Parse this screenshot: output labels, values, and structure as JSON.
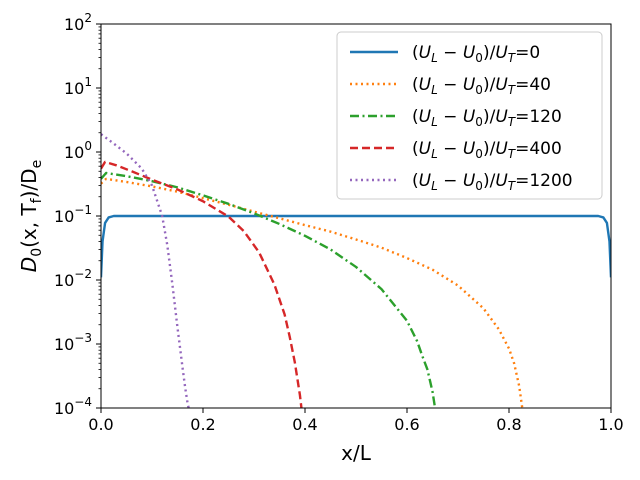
{
  "chart_data": {
    "type": "line",
    "title": "",
    "xlabel": "x/L",
    "ylabel": "D₀(x, T_f)/D_e",
    "ylabel_parts": [
      "D",
      "0",
      "(x, T",
      "f",
      ")/D",
      "e"
    ],
    "xlim": [
      0.0,
      1.0
    ],
    "ylim": [
      0.0001,
      100
    ],
    "yscale": "log",
    "grid": false,
    "legend_position": "top-right",
    "x_ticks": [
      "0.0",
      "0.2",
      "0.4",
      "0.6",
      "0.8",
      "1.0"
    ],
    "y_ticks": [
      {
        "base": "10",
        "exp": "−4"
      },
      {
        "base": "10",
        "exp": "−3"
      },
      {
        "base": "10",
        "exp": "−2"
      },
      {
        "base": "10",
        "exp": "−1"
      },
      {
        "base": "10",
        "exp": "0"
      },
      {
        "base": "10",
        "exp": "1"
      },
      {
        "base": "10",
        "exp": "2"
      }
    ],
    "series": [
      {
        "name": "(U_L − U_0)/U_T=0",
        "legend_value": "0",
        "color": "#1f77b4",
        "style": "solid",
        "x": [
          0.0,
          0.003,
          0.008,
          0.015,
          0.025,
          0.04,
          0.1,
          0.3,
          0.5,
          0.7,
          0.9,
          0.96,
          0.975,
          0.985,
          0.992,
          0.997,
          1.0
        ],
        "y": [
          0.011,
          0.04,
          0.078,
          0.095,
          0.1,
          0.1,
          0.1,
          0.1,
          0.1,
          0.1,
          0.1,
          0.1,
          0.1,
          0.095,
          0.078,
          0.04,
          0.011
        ]
      },
      {
        "name": "(U_L − U_0)/U_T=40",
        "legend_value": "40",
        "color": "#ff7f0e",
        "style": "dotted",
        "x": [
          0.0,
          0.01,
          0.05,
          0.1,
          0.15,
          0.2,
          0.25,
          0.3,
          0.35,
          0.4,
          0.45,
          0.5,
          0.55,
          0.6,
          0.65,
          0.7,
          0.75,
          0.78,
          0.8,
          0.81,
          0.82,
          0.826
        ],
        "y": [
          0.32,
          0.38,
          0.34,
          0.29,
          0.24,
          0.19,
          0.15,
          0.117,
          0.092,
          0.072,
          0.057,
          0.043,
          0.032,
          0.022,
          0.0145,
          0.0082,
          0.0036,
          0.0017,
          0.00085,
          0.0005,
          0.00022,
          0.0001
        ]
      },
      {
        "name": "(U_L − U_0)/U_T=120",
        "legend_value": "120",
        "color": "#2ca02c",
        "style": "dashdot",
        "x": [
          0.0,
          0.01,
          0.05,
          0.1,
          0.15,
          0.2,
          0.25,
          0.3,
          0.35,
          0.4,
          0.45,
          0.5,
          0.55,
          0.6,
          0.62,
          0.63,
          0.64,
          0.65,
          0.655
        ],
        "y": [
          0.38,
          0.47,
          0.42,
          0.35,
          0.28,
          0.21,
          0.155,
          0.11,
          0.075,
          0.049,
          0.03,
          0.016,
          0.0072,
          0.0023,
          0.0011,
          0.00065,
          0.0004,
          0.00018,
          0.0001
        ]
      },
      {
        "name": "(U_L − U_0)/U_T=400",
        "legend_value": "400",
        "color": "#d62728",
        "style": "dashed",
        "x": [
          0.0,
          0.008,
          0.03,
          0.06,
          0.1,
          0.15,
          0.2,
          0.25,
          0.28,
          0.31,
          0.34,
          0.36,
          0.37,
          0.38,
          0.39,
          0.393
        ],
        "y": [
          0.55,
          0.7,
          0.62,
          0.5,
          0.37,
          0.26,
          0.17,
          0.098,
          0.058,
          0.027,
          0.0085,
          0.0029,
          0.0013,
          0.00052,
          0.00016,
          0.0001
        ]
      },
      {
        "name": "(U_L − U_0)/U_T=1200",
        "legend_value": "1200",
        "color": "#9467bd",
        "style": "dotted",
        "x": [
          0.0,
          0.02,
          0.05,
          0.08,
          0.1,
          0.12,
          0.13,
          0.14,
          0.15,
          0.16,
          0.165,
          0.17,
          0.172
        ],
        "y": [
          1.9,
          1.45,
          0.95,
          0.55,
          0.3,
          0.1,
          0.035,
          0.0085,
          0.0018,
          0.00042,
          0.00021,
          0.000115,
          0.0001
        ]
      }
    ]
  }
}
